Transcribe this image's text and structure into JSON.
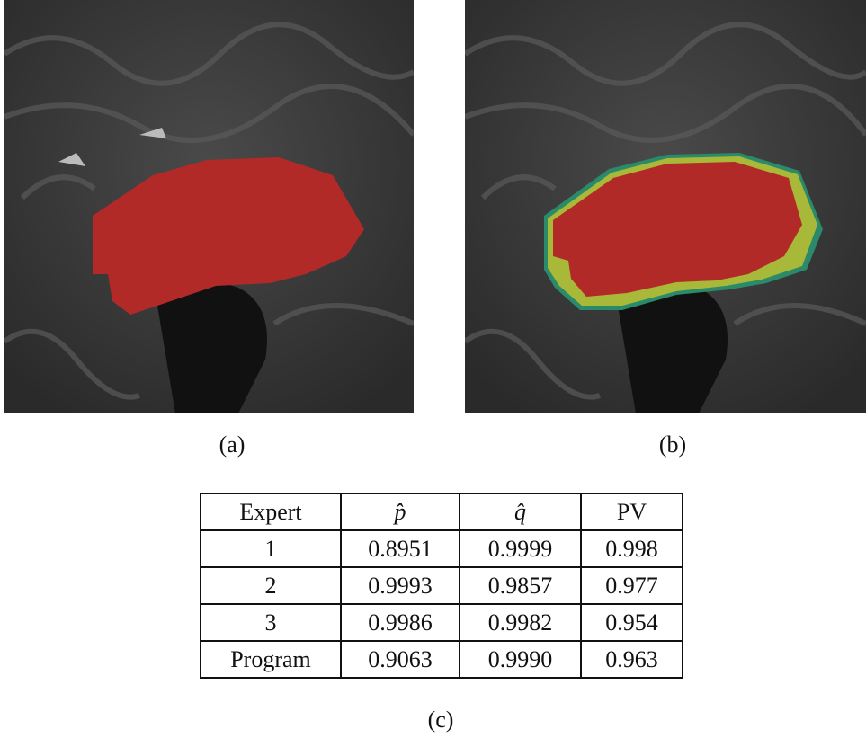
{
  "figure": {
    "captions": [
      "(a)",
      "(b)",
      "(c)"
    ],
    "table": {
      "header": [
        "Expert",
        "p̂",
        "q̂",
        "PV"
      ],
      "rows": [
        [
          "1",
          "0.8951",
          "0.9999",
          "0.998"
        ],
        [
          "2",
          "0.9993",
          "0.9857",
          "0.977"
        ],
        [
          "3",
          "0.9986",
          "0.9982",
          "0.954"
        ],
        [
          "Program",
          "0.9063",
          "0.9990",
          "0.963"
        ]
      ]
    }
  }
}
